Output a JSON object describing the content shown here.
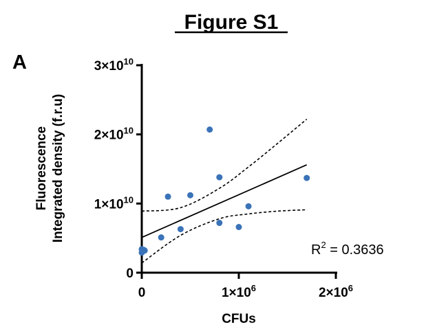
{
  "figure": {
    "title": "Figure S1",
    "panel_label": "A"
  },
  "chart_data": {
    "type": "scatter",
    "title": "",
    "xlabel": "CFUs",
    "ylabel_line1": "Fluorescence",
    "ylabel_line2": "Integrated density (f.r.u)",
    "xlim": [
      0,
      2000000
    ],
    "ylim": [
      0,
      30000000000
    ],
    "grid": false,
    "x_ticks": [
      {
        "value": 0,
        "mantissa": "0",
        "exp": ""
      },
      {
        "value": 1000000,
        "mantissa": "1×10",
        "exp": "6"
      },
      {
        "value": 2000000,
        "mantissa": "2×10",
        "exp": "6"
      }
    ],
    "y_ticks": [
      {
        "value": 0,
        "mantissa": "0",
        "exp": ""
      },
      {
        "value": 10000000000,
        "mantissa": "1×10",
        "exp": "10"
      },
      {
        "value": 20000000000,
        "mantissa": "2×10",
        "exp": "10"
      },
      {
        "value": 30000000000,
        "mantissa": "3×10",
        "exp": "10"
      }
    ],
    "points": [
      {
        "x": 0,
        "y": 2900000000
      },
      {
        "x": 0,
        "y": 3400000000
      },
      {
        "x": 10000,
        "y": 3100000000
      },
      {
        "x": 20000,
        "y": 3300000000
      },
      {
        "x": 30000,
        "y": 3200000000
      },
      {
        "x": 200000,
        "y": 5100000000
      },
      {
        "x": 270000,
        "y": 11000000000
      },
      {
        "x": 400000,
        "y": 6300000000
      },
      {
        "x": 500000,
        "y": 11200000000
      },
      {
        "x": 700000,
        "y": 20700000000
      },
      {
        "x": 800000,
        "y": 13800000000
      },
      {
        "x": 800000,
        "y": 7200000000
      },
      {
        "x": 1000000,
        "y": 6600000000
      },
      {
        "x": 1100000,
        "y": 9600000000
      },
      {
        "x": 1700000,
        "y": 13700000000
      }
    ],
    "point_color": "#3a73b8",
    "fit_line": {
      "x": [
        0,
        1700000
      ],
      "y": [
        5100000000,
        15600000000
      ]
    },
    "confidence_band": {
      "x": [
        0,
        400000,
        800000,
        1100000,
        1400000,
        1700000
      ],
      "upper": [
        8900000000,
        9400000000,
        12200000000,
        15300000000,
        18700000000,
        22200000000
      ],
      "lower": [
        1400000000,
        5400000000,
        7800000000,
        8500000000,
        8900000000,
        9100000000
      ]
    },
    "annotation": {
      "prefix": "R",
      "sup": "2",
      "suffix": " = 0.3636"
    }
  }
}
